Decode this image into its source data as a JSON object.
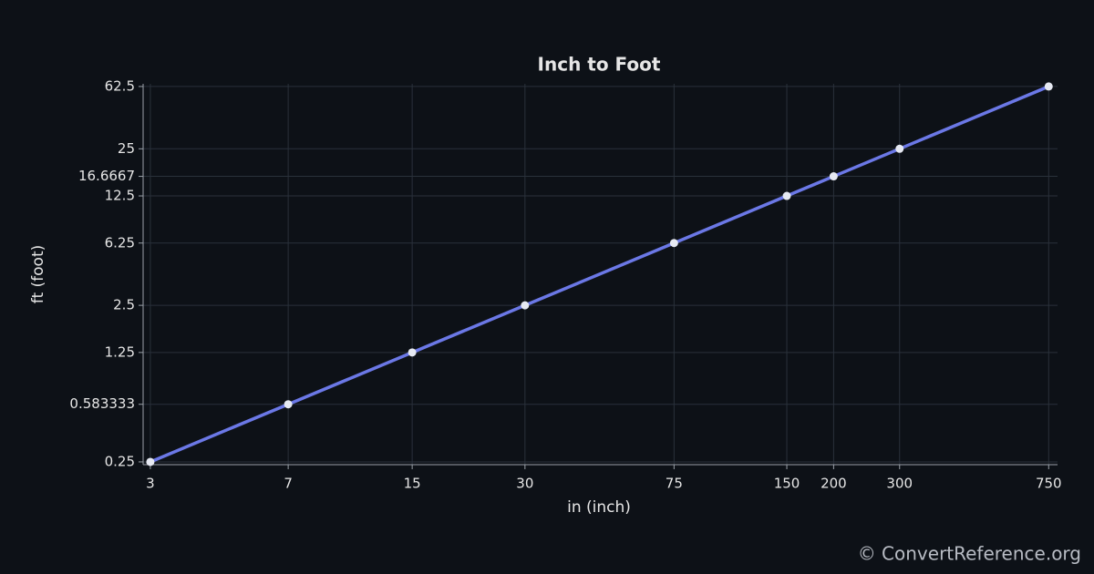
{
  "chart_data": {
    "type": "line",
    "title": "Inch to Foot",
    "x_label": "in (inch)",
    "y_label": "ft (foot)",
    "x": [
      3,
      7,
      15,
      30,
      75,
      150,
      200,
      300,
      750
    ],
    "values": [
      0.25,
      0.583333,
      1.25,
      2.5,
      6.25,
      12.5,
      16.6667,
      25,
      62.5
    ],
    "color": "#6b78e6",
    "marker_color": "#e6e9f2",
    "xscale": "log",
    "yscale": "log",
    "grid": true,
    "xlim": [
      2.87,
      792
    ],
    "ylim": [
      0.24,
      65
    ],
    "xticks": [
      3,
      7,
      15,
      30,
      75,
      150,
      200,
      300,
      750
    ],
    "yticks": [
      0.25,
      0.583333,
      1.25,
      2.5,
      6.25,
      12.5,
      16.6667,
      25,
      62.5
    ],
    "watermark": "© ConvertReference.org"
  }
}
